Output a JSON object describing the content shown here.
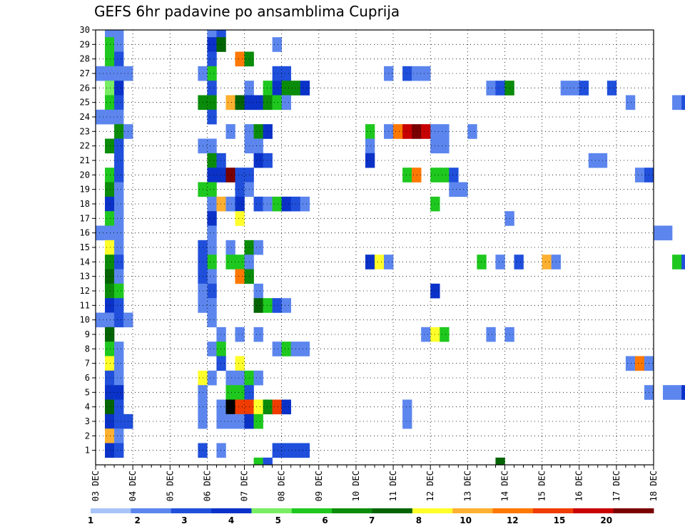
{
  "chart_data": {
    "type": "heatmap",
    "title": "GEFS 6hr padavine po ansamblima Cuprija",
    "xlabel": "",
    "ylabel": "",
    "x_ticks": [
      "03 DEC",
      "04 DEC",
      "05 DEC",
      "06 DEC",
      "07 DEC",
      "08 DEC",
      "09 DEC",
      "10 DEC",
      "11 DEC",
      "12 DEC",
      "13 DEC",
      "14 DEC",
      "15 DEC",
      "16 DEC",
      "17 DEC",
      "18 DEC"
    ],
    "x_range_days": [
      0,
      15
    ],
    "step_hours": 6,
    "y_ticks": [
      1,
      2,
      3,
      4,
      5,
      6,
      7,
      8,
      9,
      10,
      11,
      12,
      13,
      14,
      15,
      16,
      17,
      18,
      19,
      20,
      21,
      22,
      23,
      24,
      25,
      26,
      27,
      28,
      29,
      30
    ],
    "y_range": [
      0,
      30
    ],
    "grid": true,
    "legend": {
      "placement": "bottom",
      "labels": [
        "1",
        "2",
        "3",
        "4",
        "5",
        "6",
        "7",
        "8",
        "10",
        "12",
        "15",
        "20"
      ],
      "colors": [
        "#a8c4f8",
        "#5c86ee",
        "#1f4fdb",
        "#0a32c8",
        "#78ee62",
        "#1ec81e",
        "#0a8c0a",
        "#046404",
        "#ffff2a",
        "#ffb030",
        "#ff7800",
        "#f03c00",
        "#c80000",
        "#7a0000"
      ]
    },
    "cells": [
      [
        1,
        30,
        1
      ],
      [
        1,
        29,
        5
      ],
      [
        1,
        28,
        5
      ],
      [
        1,
        27,
        1
      ],
      [
        1,
        26,
        4
      ],
      [
        1,
        25,
        5
      ],
      [
        1,
        24,
        1
      ],
      [
        1,
        22,
        6
      ],
      [
        1,
        20,
        5
      ],
      [
        1,
        19,
        6
      ],
      [
        1,
        18,
        3
      ],
      [
        1,
        17,
        5
      ],
      [
        1,
        16,
        1
      ],
      [
        1,
        15,
        8
      ],
      [
        1,
        14,
        6
      ],
      [
        1,
        13,
        7
      ],
      [
        1,
        12,
        6
      ],
      [
        1,
        11,
        3
      ],
      [
        1,
        10,
        1
      ],
      [
        1,
        9,
        7
      ],
      [
        1,
        8,
        5
      ],
      [
        1,
        7,
        8
      ],
      [
        1,
        6,
        2
      ],
      [
        1,
        5,
        3
      ],
      [
        1,
        4,
        7
      ],
      [
        1,
        3,
        3
      ],
      [
        1,
        2,
        9
      ],
      [
        1,
        1,
        3
      ],
      [
        2,
        30,
        1
      ],
      [
        2,
        29,
        1
      ],
      [
        2,
        28,
        2
      ],
      [
        2,
        27,
        1
      ],
      [
        2,
        26,
        3
      ],
      [
        2,
        25,
        2
      ],
      [
        2,
        24,
        1
      ],
      [
        2,
        23,
        6
      ],
      [
        2,
        22,
        2
      ],
      [
        2,
        21,
        2
      ],
      [
        2,
        20,
        2
      ],
      [
        2,
        19,
        1
      ],
      [
        2,
        18,
        1
      ],
      [
        2,
        17,
        1
      ],
      [
        2,
        16,
        1
      ],
      [
        2,
        15,
        1
      ],
      [
        2,
        14,
        2
      ],
      [
        2,
        13,
        1
      ],
      [
        2,
        12,
        5
      ],
      [
        2,
        11,
        2
      ],
      [
        2,
        10,
        2
      ],
      [
        2,
        8,
        1
      ],
      [
        2,
        7,
        1
      ],
      [
        2,
        6,
        1
      ],
      [
        2,
        5,
        3
      ],
      [
        2,
        4,
        2
      ],
      [
        2,
        3,
        2
      ],
      [
        2,
        2,
        1
      ],
      [
        2,
        1,
        2
      ],
      [
        3,
        27,
        1
      ],
      [
        3,
        23,
        1
      ],
      [
        3,
        10,
        1
      ],
      [
        3,
        3,
        2
      ],
      [
        0,
        27,
        1
      ],
      [
        0,
        24,
        1
      ],
      [
        0,
        16,
        1
      ],
      [
        0,
        10,
        1
      ],
      [
        12,
        30,
        1
      ],
      [
        12,
        29,
        3
      ],
      [
        12,
        28,
        2
      ],
      [
        12,
        27,
        5
      ],
      [
        12,
        26,
        2
      ],
      [
        12,
        25,
        6
      ],
      [
        12,
        24,
        2
      ],
      [
        12,
        22,
        1
      ],
      [
        12,
        21,
        6
      ],
      [
        12,
        20,
        3
      ],
      [
        12,
        19,
        5
      ],
      [
        12,
        18,
        1
      ],
      [
        12,
        17,
        3
      ],
      [
        12,
        16,
        1
      ],
      [
        12,
        15,
        1
      ],
      [
        12,
        14,
        5
      ],
      [
        12,
        13,
        1
      ],
      [
        12,
        12,
        2
      ],
      [
        12,
        11,
        1
      ],
      [
        12,
        10,
        1
      ],
      [
        12,
        8,
        1
      ],
      [
        12,
        6,
        1
      ],
      [
        11,
        27,
        1
      ],
      [
        11,
        25,
        6
      ],
      [
        11,
        22,
        1
      ],
      [
        11,
        19,
        5
      ],
      [
        11,
        15,
        2
      ],
      [
        11,
        14,
        2
      ],
      [
        11,
        13,
        2
      ],
      [
        11,
        12,
        1
      ],
      [
        11,
        11,
        1
      ],
      [
        11,
        6,
        8
      ],
      [
        11,
        5,
        1
      ],
      [
        11,
        4,
        1
      ],
      [
        11,
        3,
        1
      ],
      [
        11,
        1,
        2
      ],
      [
        13,
        30,
        2
      ],
      [
        13,
        29,
        7
      ],
      [
        13,
        21,
        2
      ],
      [
        13,
        20,
        3
      ],
      [
        13,
        18,
        9
      ],
      [
        13,
        9,
        1
      ],
      [
        13,
        8,
        5
      ],
      [
        13,
        7,
        2
      ],
      [
        13,
        4,
        1
      ],
      [
        13,
        3,
        1
      ],
      [
        13,
        1,
        1
      ],
      [
        14,
        25,
        9
      ],
      [
        14,
        23,
        1
      ],
      [
        14,
        20,
        13
      ],
      [
        14,
        18,
        1
      ],
      [
        14,
        15,
        1
      ],
      [
        14,
        14,
        5
      ],
      [
        14,
        6,
        1
      ],
      [
        14,
        5,
        5
      ],
      [
        14,
        4,
        14
      ],
      [
        14,
        3,
        1
      ],
      [
        15,
        28,
        10
      ],
      [
        15,
        25,
        7
      ],
      [
        15,
        20,
        2
      ],
      [
        15,
        19,
        2
      ],
      [
        15,
        18,
        3
      ],
      [
        15,
        17,
        8
      ],
      [
        15,
        14,
        5
      ],
      [
        15,
        13,
        10
      ],
      [
        15,
        9,
        1
      ],
      [
        15,
        7,
        8
      ],
      [
        15,
        6,
        1
      ],
      [
        15,
        5,
        5
      ],
      [
        15,
        4,
        11
      ],
      [
        15,
        3,
        1
      ],
      [
        16,
        28,
        6
      ],
      [
        16,
        26,
        1
      ],
      [
        16,
        25,
        3
      ],
      [
        16,
        23,
        1
      ],
      [
        16,
        22,
        1
      ],
      [
        16,
        20,
        2
      ],
      [
        16,
        19,
        1
      ],
      [
        16,
        15,
        6
      ],
      [
        16,
        14,
        1
      ],
      [
        16,
        13,
        6
      ],
      [
        16,
        6,
        5
      ],
      [
        16,
        5,
        2
      ],
      [
        16,
        4,
        11
      ],
      [
        16,
        3,
        3
      ],
      [
        17,
        25,
        3
      ],
      [
        17,
        23,
        6
      ],
      [
        17,
        22,
        1
      ],
      [
        17,
        21,
        3
      ],
      [
        17,
        18,
        2
      ],
      [
        17,
        15,
        1
      ],
      [
        17,
        12,
        1
      ],
      [
        17,
        11,
        7
      ],
      [
        17,
        9,
        1
      ],
      [
        17,
        6,
        1
      ],
      [
        17,
        4,
        8
      ],
      [
        17,
        3,
        5
      ],
      [
        17,
        0,
        5
      ],
      [
        18,
        26,
        5
      ],
      [
        18,
        25,
        6
      ],
      [
        18,
        23,
        3
      ],
      [
        18,
        21,
        2
      ],
      [
        18,
        18,
        1
      ],
      [
        18,
        11,
        5
      ],
      [
        18,
        4,
        6
      ],
      [
        18,
        0,
        2
      ],
      [
        19,
        29,
        1
      ],
      [
        19,
        27,
        2
      ],
      [
        19,
        26,
        3
      ],
      [
        19,
        25,
        5
      ],
      [
        19,
        18,
        5
      ],
      [
        19,
        11,
        2
      ],
      [
        19,
        8,
        1
      ],
      [
        19,
        4,
        11
      ],
      [
        19,
        1,
        2
      ],
      [
        20,
        27,
        2
      ],
      [
        20,
        26,
        6
      ],
      [
        20,
        25,
        1
      ],
      [
        20,
        18,
        3
      ],
      [
        20,
        11,
        1
      ],
      [
        20,
        8,
        5
      ],
      [
        20,
        4,
        3
      ],
      [
        20,
        1,
        2
      ],
      [
        21,
        26,
        6
      ],
      [
        21,
        18,
        2
      ],
      [
        21,
        8,
        1
      ],
      [
        21,
        1,
        2
      ],
      [
        22,
        26,
        3
      ],
      [
        22,
        18,
        1
      ],
      [
        22,
        8,
        1
      ],
      [
        22,
        1,
        2
      ],
      [
        29,
        23,
        5
      ],
      [
        29,
        22,
        1
      ],
      [
        29,
        21,
        3
      ],
      [
        29,
        14,
        3
      ],
      [
        30,
        14,
        8
      ],
      [
        31,
        27,
        1
      ],
      [
        31,
        23,
        1
      ],
      [
        31,
        14,
        1
      ],
      [
        32,
        23,
        10
      ],
      [
        33,
        27,
        2
      ],
      [
        33,
        23,
        12
      ],
      [
        33,
        20,
        5
      ],
      [
        33,
        4,
        1
      ],
      [
        33,
        3,
        1
      ],
      [
        34,
        27,
        1
      ],
      [
        34,
        23,
        13
      ],
      [
        34,
        20,
        10
      ],
      [
        35,
        27,
        1
      ],
      [
        35,
        23,
        12
      ],
      [
        35,
        9,
        1
      ],
      [
        36,
        23,
        1
      ],
      [
        36,
        22,
        1
      ],
      [
        36,
        20,
        5
      ],
      [
        36,
        18,
        5
      ],
      [
        36,
        12,
        3
      ],
      [
        36,
        9,
        8
      ],
      [
        37,
        23,
        1
      ],
      [
        37,
        22,
        1
      ],
      [
        37,
        20,
        5
      ],
      [
        37,
        9,
        5
      ],
      [
        38,
        20,
        2
      ],
      [
        38,
        19,
        1
      ],
      [
        39,
        19,
        1
      ],
      [
        40,
        23,
        1
      ],
      [
        41,
        14,
        5
      ],
      [
        42,
        26,
        1
      ],
      [
        42,
        9,
        1
      ],
      [
        43,
        26,
        2
      ],
      [
        43,
        14,
        1
      ],
      [
        44,
        26,
        6
      ],
      [
        44,
        17,
        1
      ],
      [
        44,
        9,
        1
      ],
      [
        45,
        14,
        2
      ],
      [
        48,
        14,
        9
      ],
      [
        49,
        14,
        1
      ],
      [
        50,
        26,
        1
      ],
      [
        51,
        26,
        1
      ],
      [
        52,
        26,
        2
      ],
      [
        53,
        21,
        1
      ],
      [
        54,
        21,
        1
      ],
      [
        55,
        26,
        2
      ],
      [
        57,
        25,
        1
      ],
      [
        57,
        7,
        1
      ],
      [
        58,
        20,
        1
      ],
      [
        58,
        7,
        10
      ],
      [
        59,
        20,
        2
      ],
      [
        59,
        7,
        1
      ],
      [
        59,
        5,
        1
      ],
      [
        60,
        16,
        1
      ],
      [
        61,
        16,
        1
      ],
      [
        61,
        5,
        1
      ],
      [
        62,
        25,
        1
      ],
      [
        62,
        14,
        5
      ],
      [
        62,
        5,
        1
      ],
      [
        63,
        25,
        2
      ],
      [
        63,
        14,
        2
      ],
      [
        63,
        5,
        3
      ],
      [
        64,
        25,
        3
      ],
      [
        64,
        14,
        2
      ],
      [
        65,
        25,
        1
      ],
      [
        65,
        21,
        1
      ],
      [
        65,
        2,
        1
      ],
      [
        66,
        25,
        1
      ],
      [
        66,
        21,
        1
      ],
      [
        66,
        2,
        1
      ],
      [
        67,
        25,
        1
      ],
      [
        67,
        21,
        3
      ],
      [
        67,
        2,
        1
      ],
      [
        68,
        21,
        6
      ],
      [
        68,
        2,
        2
      ],
      [
        69,
        29,
        1
      ],
      [
        69,
        26,
        1
      ],
      [
        69,
        25,
        1
      ],
      [
        69,
        18,
        1
      ],
      [
        69,
        15,
        1
      ],
      [
        69,
        2,
        1
      ],
      [
        43,
        0,
        7
      ]
    ]
  }
}
